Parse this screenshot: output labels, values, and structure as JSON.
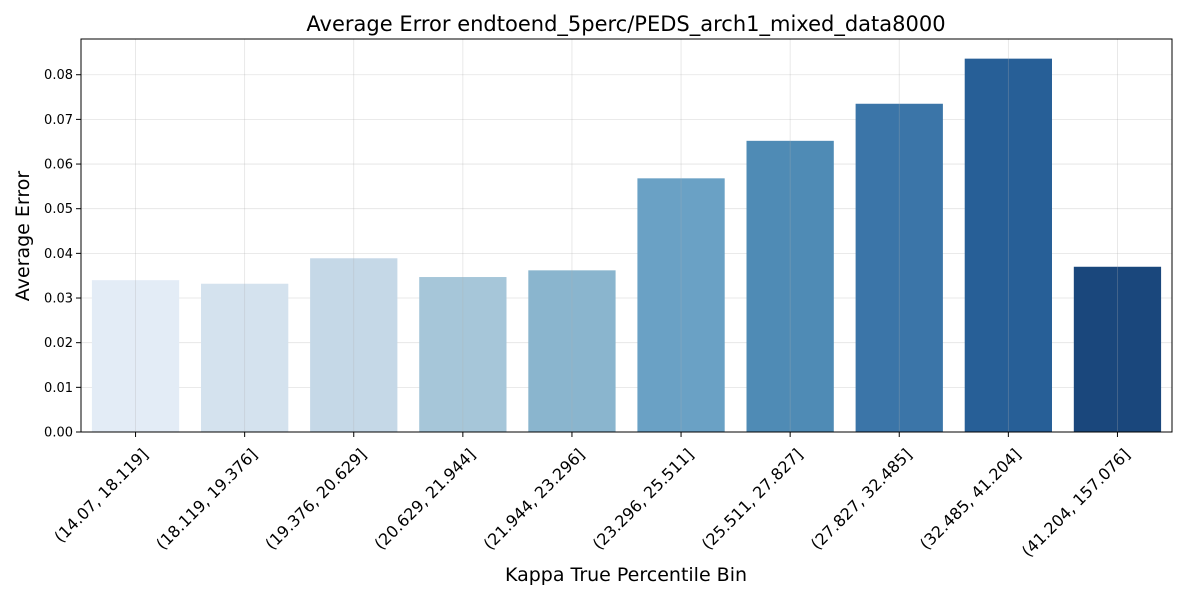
{
  "chart_data": {
    "type": "bar",
    "title": "Average Error endtoend_5perc/PEDS_arch1_mixed_data8000",
    "xlabel": "Kappa True Percentile Bin",
    "ylabel": "Average Error",
    "categories": [
      "(14.07, 18.119]",
      "(18.119, 19.376]",
      "(19.376, 20.629]",
      "(20.629, 21.944]",
      "(21.944, 23.296]",
      "(23.296, 25.511]",
      "(25.511, 27.827]",
      "(27.827, 32.485]",
      "(32.485, 41.204]",
      "(41.204, 157.076]"
    ],
    "values": [
      0.034,
      0.0332,
      0.0389,
      0.0347,
      0.0362,
      0.0568,
      0.0652,
      0.0735,
      0.0836,
      0.037
    ],
    "colors": [
      "#e3ecf6",
      "#d4e2ee",
      "#c5d8e7",
      "#a6c6d9",
      "#8ab5ce",
      "#6aa1c5",
      "#4f8bb5",
      "#3b75a8",
      "#275f97",
      "#1a477c"
    ],
    "ylim": [
      0,
      0.088
    ],
    "yticks": [
      "0.00",
      "0.01",
      "0.02",
      "0.03",
      "0.04",
      "0.05",
      "0.06",
      "0.07",
      "0.08"
    ],
    "ytick_values": [
      0,
      0.01,
      0.02,
      0.03,
      0.04,
      0.05,
      0.06,
      0.07,
      0.08
    ],
    "grid": true,
    "legend": "none"
  }
}
